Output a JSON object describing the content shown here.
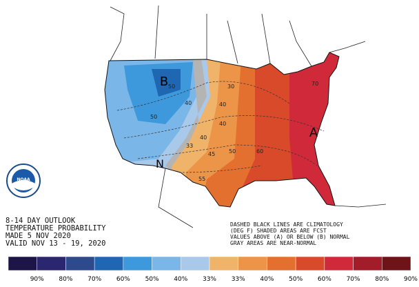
{
  "header": {
    "lines": [
      "8-14 DAY OUTLOOK",
      "TEMPERATURE PROBABILITY",
      "MADE  5 NOV 2020",
      "VALID  NOV 13 - 19, 2020"
    ]
  },
  "notes": {
    "lines": [
      "DASHED BLACK LINES ARE CLIMATOLOGY",
      "(DEG F) SHADED AREAS ARE FCST",
      "VALUES ABOVE (A) OR BELOW (B) NORMAL",
      "GRAY AREAS ARE NEAR-NORMAL"
    ]
  },
  "logo": {
    "label": "NOAA"
  },
  "map_labels": {
    "below": "B",
    "above": "A",
    "near": "N",
    "contours": [
      "50",
      "40",
      "50",
      "33",
      "40",
      "30",
      "40",
      "45",
      "40",
      "50",
      "55",
      "60",
      "70"
    ]
  },
  "legend": {
    "items": [
      {
        "label": "90%",
        "color": "#1d1448"
      },
      {
        "label": "80%",
        "color": "#2a2670"
      },
      {
        "label": "70%",
        "color": "#2d4a8c"
      },
      {
        "label": "60%",
        "color": "#1f66b3"
      },
      {
        "label": "50%",
        "color": "#3e98dc"
      },
      {
        "label": "40%",
        "color": "#7ab6e8"
      },
      {
        "label": "33%",
        "color": "#a9c9ea"
      },
      {
        "label": "33%",
        "color": "#f0b36a"
      },
      {
        "label": "40%",
        "color": "#ec9448"
      },
      {
        "label": "50%",
        "color": "#e47030"
      },
      {
        "label": "60%",
        "color": "#d84a2a"
      },
      {
        "label": "70%",
        "color": "#d02a3a"
      },
      {
        "label": "80%",
        "color": "#a21c2a"
      },
      {
        "label": "90%",
        "color": "#6c1418"
      }
    ]
  }
}
